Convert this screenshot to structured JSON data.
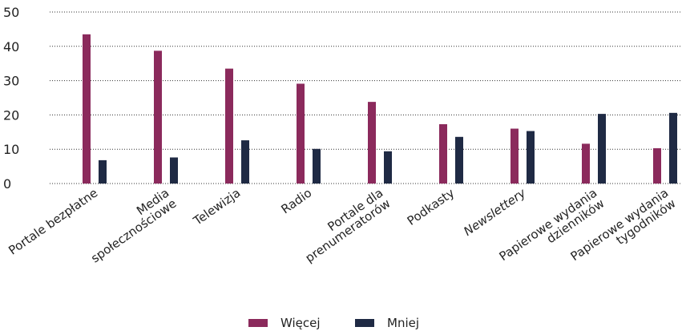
{
  "chart_data": {
    "type": "bar",
    "title": "",
    "xlabel": "",
    "ylabel": "",
    "ylim": [
      0,
      50
    ],
    "yticks": [
      0,
      10,
      20,
      30,
      40,
      50
    ],
    "grid": "horizontal-dotted",
    "legend_position": "bottom-center",
    "categories": [
      [
        "Portale bezpłatne"
      ],
      [
        "Media",
        "społecznościowe"
      ],
      [
        "Telewizja"
      ],
      [
        "Radio"
      ],
      [
        "Portale dla",
        "prenumeratorów"
      ],
      [
        "Podkasty"
      ],
      [
        "Newslettery"
      ],
      [
        "Papierowe wydania",
        "dzienników"
      ],
      [
        "Papierowe wydania",
        "tygodników"
      ]
    ],
    "italic_categories": [
      6
    ],
    "series": [
      {
        "name": "Więcej",
        "color": "#8b2a5c",
        "values": [
          43.5,
          38.7,
          33.5,
          29.1,
          23.8,
          17.3,
          16.0,
          11.6,
          10.3
        ]
      },
      {
        "name": "Mniej",
        "color": "#1f2a44",
        "values": [
          6.8,
          7.6,
          12.6,
          10.1,
          9.4,
          13.6,
          15.3,
          20.3,
          20.6
        ]
      }
    ]
  }
}
